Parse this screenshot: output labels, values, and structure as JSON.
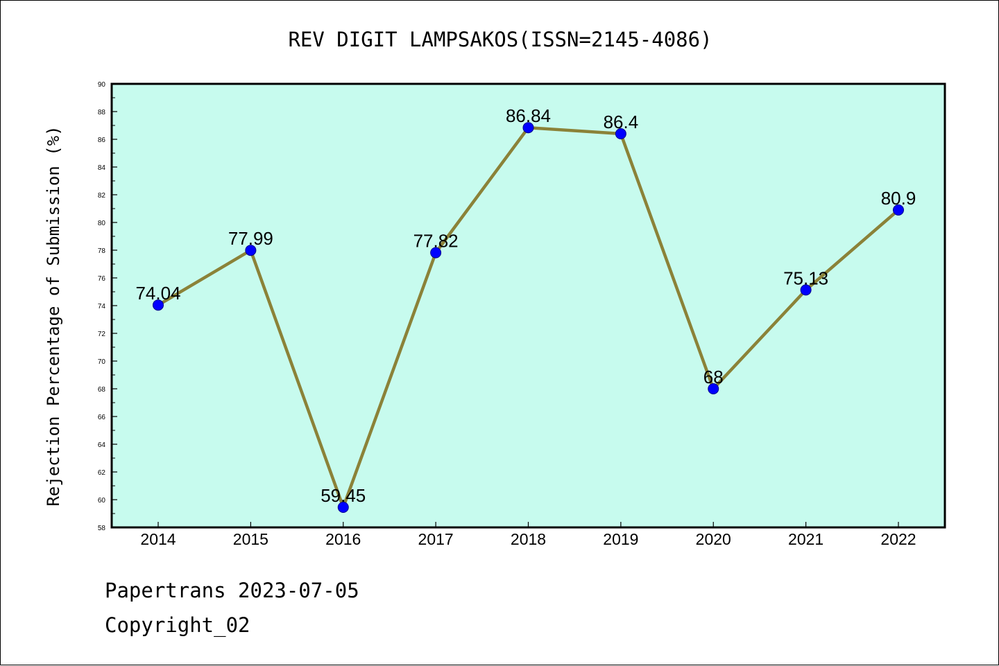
{
  "chart_data": {
    "type": "line",
    "title": "REV DIGIT LAMPSAKOS(ISSN=2145-4086)",
    "xlabel": "",
    "ylabel": "Rejection Percentage of Submission (%)",
    "categories": [
      "2014",
      "2015",
      "2016",
      "2017",
      "2018",
      "2019",
      "2020",
      "2021",
      "2022"
    ],
    "values": [
      74.04,
      77.99,
      59.45,
      77.82,
      86.84,
      86.4,
      68,
      75.13,
      80.9
    ],
    "data_labels": [
      "74.04",
      "77.99",
      "59.45",
      "77.82",
      "86.84",
      "86.4",
      "68",
      "75.13",
      "80.9"
    ],
    "ylim": [
      58,
      90
    ],
    "y_ticks": [
      58,
      60,
      62,
      64,
      66,
      68,
      70,
      72,
      74,
      76,
      78,
      80,
      82,
      84,
      86,
      88,
      90
    ],
    "grid": false,
    "legend": "none",
    "colors": {
      "plot_background": "#c7fbee",
      "line": "#8b8238",
      "marker": "#0000ff",
      "marker_edge": "#00008b",
      "axis": "#000000"
    }
  },
  "footer": {
    "source": "Papertrans 2023-07-05",
    "copyright": "Copyright_02"
  }
}
